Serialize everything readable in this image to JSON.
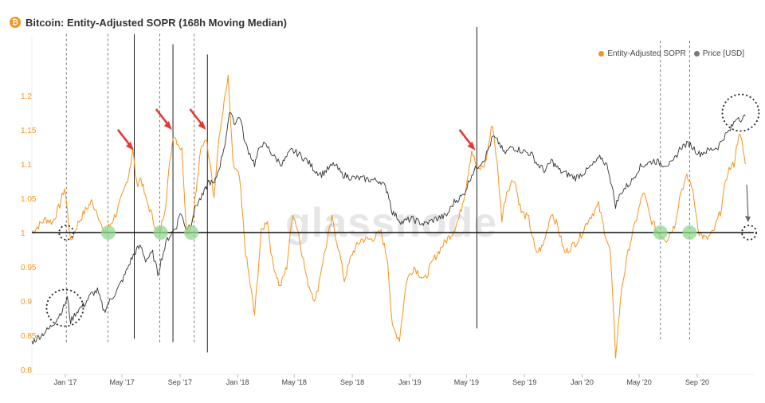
{
  "title": "Bitcoin: Entity-Adjusted SOPR (168h Moving Median)",
  "watermark": "glassnode",
  "colors": {
    "sopr": "#f7931a",
    "price": "#333333",
    "annotation_red": "#e53935",
    "green": "#8fd88f"
  },
  "chart_data": {
    "type": "line",
    "title": "Bitcoin: Entity-Adjusted SOPR (168h Moving Median)",
    "xlabel": "",
    "ylabel": "",
    "x_range": [
      "2016-10-22",
      "2020-12-30"
    ],
    "ylim": [
      0.8,
      1.25
    ],
    "y_ticks": [
      "0.8",
      "0.85",
      "0.9",
      "0.95",
      "1",
      "1.05",
      "1.1",
      "1.15",
      "1.2"
    ],
    "x_ticks": [
      {
        "date": "2017-01-01",
        "label": "Jan '17"
      },
      {
        "date": "2017-05-01",
        "label": "May '17"
      },
      {
        "date": "2017-09-01",
        "label": "Sep '17"
      },
      {
        "date": "2018-01-01",
        "label": "Jan '18"
      },
      {
        "date": "2018-05-01",
        "label": "May '18"
      },
      {
        "date": "2018-09-01",
        "label": "Sep '18"
      },
      {
        "date": "2019-01-01",
        "label": "Jan '19"
      },
      {
        "date": "2019-05-01",
        "label": "May '19"
      },
      {
        "date": "2019-09-01",
        "label": "Sep '19"
      },
      {
        "date": "2020-01-01",
        "label": "Jan '20"
      },
      {
        "date": "2020-05-01",
        "label": "May '20"
      },
      {
        "date": "2020-09-01",
        "label": "Sep '20"
      }
    ],
    "legend_position": "top-right",
    "grid": false,
    "series": [
      {
        "name": "Entity-Adjusted SOPR",
        "color": "#f7931a",
        "points": [
          [
            "2016-10-22",
            1.0
          ],
          [
            "2016-11-05",
            1.01
          ],
          [
            "2016-11-20",
            1.02
          ],
          [
            "2016-12-05",
            1.015
          ],
          [
            "2016-12-20",
            1.04
          ],
          [
            "2016-12-30",
            1.065
          ],
          [
            "2017-01-06",
            1.03
          ],
          [
            "2017-01-12",
            0.985
          ],
          [
            "2017-01-25",
            1.01
          ],
          [
            "2017-02-10",
            1.03
          ],
          [
            "2017-02-25",
            1.045
          ],
          [
            "2017-03-10",
            1.03
          ],
          [
            "2017-03-22",
            1.0
          ],
          [
            "2017-04-05",
            1.01
          ],
          [
            "2017-04-20",
            1.03
          ],
          [
            "2017-05-05",
            1.06
          ],
          [
            "2017-05-15",
            1.085
          ],
          [
            "2017-05-24",
            1.12
          ],
          [
            "2017-06-01",
            1.07
          ],
          [
            "2017-06-10",
            1.08
          ],
          [
            "2017-06-20",
            1.05
          ],
          [
            "2017-07-01",
            1.03
          ],
          [
            "2017-07-15",
            1.0
          ],
          [
            "2017-07-22",
            1.005
          ],
          [
            "2017-08-01",
            1.04
          ],
          [
            "2017-08-10",
            1.1
          ],
          [
            "2017-08-18",
            1.145
          ],
          [
            "2017-08-28",
            1.13
          ],
          [
            "2017-09-05",
            1.12
          ],
          [
            "2017-09-15",
            1.0
          ],
          [
            "2017-09-25",
            1.01
          ],
          [
            "2017-10-05",
            1.06
          ],
          [
            "2017-10-15",
            1.12
          ],
          [
            "2017-10-25",
            1.14
          ],
          [
            "2017-11-05",
            1.1
          ],
          [
            "2017-11-12",
            1.05
          ],
          [
            "2017-11-20",
            1.12
          ],
          [
            "2017-12-01",
            1.18
          ],
          [
            "2017-12-12",
            1.225
          ],
          [
            "2017-12-22",
            1.1
          ],
          [
            "2018-01-05",
            1.08
          ],
          [
            "2018-01-18",
            0.97
          ],
          [
            "2018-02-06",
            0.88
          ],
          [
            "2018-02-20",
            1.0
          ],
          [
            "2018-03-05",
            1.02
          ],
          [
            "2018-03-15",
            0.96
          ],
          [
            "2018-04-01",
            0.92
          ],
          [
            "2018-04-15",
            0.95
          ],
          [
            "2018-04-28",
            1.03
          ],
          [
            "2018-05-10",
            1.0
          ],
          [
            "2018-05-28",
            0.93
          ],
          [
            "2018-06-15",
            0.9
          ],
          [
            "2018-06-28",
            0.95
          ],
          [
            "2018-07-20",
            1.02
          ],
          [
            "2018-08-05",
            0.97
          ],
          [
            "2018-08-15",
            0.93
          ],
          [
            "2018-09-01",
            0.97
          ],
          [
            "2018-09-20",
            0.99
          ],
          [
            "2018-10-10",
            0.99
          ],
          [
            "2018-11-01",
            1.0
          ],
          [
            "2018-11-15",
            0.96
          ],
          [
            "2018-11-25",
            0.86
          ],
          [
            "2018-12-10",
            0.845
          ],
          [
            "2018-12-25",
            0.93
          ],
          [
            "2019-01-10",
            0.95
          ],
          [
            "2019-02-01",
            0.93
          ],
          [
            "2019-02-20",
            0.96
          ],
          [
            "2019-03-10",
            0.98
          ],
          [
            "2019-04-01",
            1.0
          ],
          [
            "2019-04-15",
            1.02
          ],
          [
            "2019-04-28",
            1.06
          ],
          [
            "2019-05-12",
            1.12
          ],
          [
            "2019-05-25",
            1.09
          ],
          [
            "2019-06-10",
            1.1
          ],
          [
            "2019-06-25",
            1.16
          ],
          [
            "2019-07-05",
            1.1
          ],
          [
            "2019-07-15",
            1.02
          ],
          [
            "2019-07-25",
            1.06
          ],
          [
            "2019-08-10",
            1.08
          ],
          [
            "2019-08-25",
            1.03
          ],
          [
            "2019-09-10",
            1.02
          ],
          [
            "2019-09-25",
            0.97
          ],
          [
            "2019-10-10",
            0.98
          ],
          [
            "2019-10-28",
            1.03
          ],
          [
            "2019-11-10",
            1.01
          ],
          [
            "2019-11-25",
            0.97
          ],
          [
            "2019-12-10",
            0.98
          ],
          [
            "2019-12-25",
            0.99
          ],
          [
            "2020-01-15",
            1.02
          ],
          [
            "2020-02-05",
            1.04
          ],
          [
            "2020-02-15",
            1.01
          ],
          [
            "2020-03-01",
            0.97
          ],
          [
            "2020-03-12",
            0.82
          ],
          [
            "2020-03-25",
            0.92
          ],
          [
            "2020-04-10",
            0.98
          ],
          [
            "2020-04-25",
            1.02
          ],
          [
            "2020-05-10",
            1.06
          ],
          [
            "2020-05-25",
            1.02
          ],
          [
            "2020-06-10",
            1.0
          ],
          [
            "2020-06-28",
            0.99
          ],
          [
            "2020-07-15",
            1.01
          ],
          [
            "2020-07-28",
            1.06
          ],
          [
            "2020-08-10",
            1.08
          ],
          [
            "2020-08-20",
            1.07
          ],
          [
            "2020-09-05",
            1.0
          ],
          [
            "2020-09-20",
            0.99
          ],
          [
            "2020-10-05",
            1.0
          ],
          [
            "2020-10-20",
            1.03
          ],
          [
            "2020-11-05",
            1.09
          ],
          [
            "2020-11-18",
            1.1
          ],
          [
            "2020-11-28",
            1.145
          ],
          [
            "2020-12-05",
            1.13
          ],
          [
            "2020-12-12",
            1.1
          ]
        ]
      },
      {
        "name": "Price [USD]",
        "color": "#333333",
        "points": [
          [
            "2016-10-22",
            0.84
          ],
          [
            "2016-11-10",
            0.85
          ],
          [
            "2016-11-28",
            0.86
          ],
          [
            "2016-12-15",
            0.875
          ],
          [
            "2016-12-28",
            0.89
          ],
          [
            "2017-01-05",
            0.905
          ],
          [
            "2017-01-12",
            0.87
          ],
          [
            "2017-01-25",
            0.885
          ],
          [
            "2017-02-10",
            0.895
          ],
          [
            "2017-02-25",
            0.91
          ],
          [
            "2017-03-10",
            0.915
          ],
          [
            "2017-03-24",
            0.885
          ],
          [
            "2017-04-05",
            0.9
          ],
          [
            "2017-04-20",
            0.915
          ],
          [
            "2017-05-05",
            0.935
          ],
          [
            "2017-05-20",
            0.96
          ],
          [
            "2017-06-01",
            0.975
          ],
          [
            "2017-06-10",
            0.98
          ],
          [
            "2017-06-20",
            0.96
          ],
          [
            "2017-07-05",
            0.97
          ],
          [
            "2017-07-16",
            0.94
          ],
          [
            "2017-07-25",
            0.965
          ],
          [
            "2017-08-05",
            0.99
          ],
          [
            "2017-08-15",
            1.0
          ],
          [
            "2017-08-25",
            1.01
          ],
          [
            "2017-09-01",
            1.03
          ],
          [
            "2017-09-15",
            1.005
          ],
          [
            "2017-09-25",
            1.015
          ],
          [
            "2017-10-05",
            1.04
          ],
          [
            "2017-10-20",
            1.055
          ],
          [
            "2017-11-01",
            1.075
          ],
          [
            "2017-11-12",
            1.07
          ],
          [
            "2017-11-25",
            1.1
          ],
          [
            "2017-12-05",
            1.13
          ],
          [
            "2017-12-17",
            1.18
          ],
          [
            "2017-12-25",
            1.16
          ],
          [
            "2018-01-06",
            1.17
          ],
          [
            "2018-01-17",
            1.13
          ],
          [
            "2018-02-06",
            1.1
          ],
          [
            "2018-02-20",
            1.13
          ],
          [
            "2018-03-05",
            1.125
          ],
          [
            "2018-03-20",
            1.11
          ],
          [
            "2018-04-05",
            1.1
          ],
          [
            "2018-04-25",
            1.12
          ],
          [
            "2018-05-10",
            1.115
          ],
          [
            "2018-05-28",
            1.105
          ],
          [
            "2018-06-15",
            1.09
          ],
          [
            "2018-06-28",
            1.085
          ],
          [
            "2018-07-25",
            1.1
          ],
          [
            "2018-08-10",
            1.085
          ],
          [
            "2018-09-01",
            1.08
          ],
          [
            "2018-10-01",
            1.078
          ],
          [
            "2018-11-01",
            1.075
          ],
          [
            "2018-11-15",
            1.06
          ],
          [
            "2018-11-25",
            1.03
          ],
          [
            "2018-12-15",
            1.015
          ],
          [
            "2019-01-05",
            1.02
          ],
          [
            "2019-02-01",
            1.012
          ],
          [
            "2019-02-25",
            1.02
          ],
          [
            "2019-03-20",
            1.025
          ],
          [
            "2019-04-05",
            1.045
          ],
          [
            "2019-04-25",
            1.055
          ],
          [
            "2019-05-12",
            1.085
          ],
          [
            "2019-05-28",
            1.1
          ],
          [
            "2019-06-10",
            1.11
          ],
          [
            "2019-06-26",
            1.14
          ],
          [
            "2019-07-10",
            1.13
          ],
          [
            "2019-07-20",
            1.115
          ],
          [
            "2019-08-05",
            1.125
          ],
          [
            "2019-08-25",
            1.12
          ],
          [
            "2019-09-15",
            1.115
          ],
          [
            "2019-09-28",
            1.1
          ],
          [
            "2019-10-15",
            1.09
          ],
          [
            "2019-10-28",
            1.105
          ],
          [
            "2019-11-15",
            1.09
          ],
          [
            "2019-12-01",
            1.085
          ],
          [
            "2019-12-18",
            1.08
          ],
          [
            "2020-01-10",
            1.09
          ],
          [
            "2020-02-10",
            1.11
          ],
          [
            "2020-02-25",
            1.095
          ],
          [
            "2020-03-12",
            1.04
          ],
          [
            "2020-03-25",
            1.06
          ],
          [
            "2020-04-15",
            1.075
          ],
          [
            "2020-05-01",
            1.095
          ],
          [
            "2020-05-15",
            1.1
          ],
          [
            "2020-06-01",
            1.105
          ],
          [
            "2020-06-20",
            1.1
          ],
          [
            "2020-07-10",
            1.1
          ],
          [
            "2020-07-28",
            1.125
          ],
          [
            "2020-08-15",
            1.13
          ],
          [
            "2020-09-05",
            1.115
          ],
          [
            "2020-09-25",
            1.12
          ],
          [
            "2020-10-15",
            1.125
          ],
          [
            "2020-10-28",
            1.14
          ],
          [
            "2020-11-10",
            1.15
          ],
          [
            "2020-11-25",
            1.17
          ],
          [
            "2020-12-05",
            1.165
          ],
          [
            "2020-12-12",
            1.17
          ]
        ]
      }
    ],
    "reference_line": {
      "y": 1.0
    },
    "vertical_lines": [
      {
        "date": "2017-01-03",
        "style": "dotted",
        "y_from": 0.84,
        "y_to": 1.29
      },
      {
        "date": "2017-04-01",
        "style": "dotted",
        "y_from": 0.84,
        "y_to": 1.29
      },
      {
        "date": "2017-05-27",
        "style": "solid",
        "y_from": 0.845,
        "y_to": 1.29
      },
      {
        "date": "2017-07-20",
        "style": "dotted",
        "y_from": 0.84,
        "y_to": 1.29
      },
      {
        "date": "2017-08-17",
        "style": "solid",
        "y_from": 0.84,
        "y_to": 1.275
      },
      {
        "date": "2017-10-01",
        "style": "dotted",
        "y_from": 0.84,
        "y_to": 1.29
      },
      {
        "date": "2017-10-29",
        "style": "solid",
        "y_from": 0.825,
        "y_to": 1.26
      },
      {
        "date": "2019-05-23",
        "style": "solid",
        "y_from": 0.86,
        "y_to": 1.3
      },
      {
        "date": "2020-06-15",
        "style": "dotted",
        "y_from": 0.84,
        "y_to": 1.28
      },
      {
        "date": "2020-08-16",
        "style": "dotted",
        "y_from": 0.84,
        "y_to": 1.28
      }
    ],
    "red_arrows": [
      {
        "date": "2017-05-26",
        "y": 1.12
      },
      {
        "date": "2017-08-15",
        "y": 1.15
      },
      {
        "date": "2017-10-26",
        "y": 1.15
      },
      {
        "date": "2019-05-20",
        "y": 1.12
      }
    ],
    "green_circles": [
      {
        "date": "2017-04-02",
        "y": 1.0
      },
      {
        "date": "2017-07-22",
        "y": 1.0
      },
      {
        "date": "2017-09-25",
        "y": 1.0
      },
      {
        "date": "2020-06-15",
        "y": 1.0
      },
      {
        "date": "2020-08-16",
        "y": 1.0
      }
    ],
    "dotted_circles": [
      {
        "date": "2017-01-03",
        "y": 1.0,
        "size": "small"
      },
      {
        "date": "2016-12-31",
        "y": 0.89,
        "size": "large"
      },
      {
        "date": "2020-12-02",
        "y": 1.175,
        "size": "large"
      },
      {
        "date": "2020-12-20",
        "y": 1.0,
        "size": "small"
      }
    ],
    "gray_arrow": {
      "from_date": "2020-12-15",
      "from_y": 1.07,
      "to_date": "2020-12-18",
      "to_y": 1.015
    }
  }
}
